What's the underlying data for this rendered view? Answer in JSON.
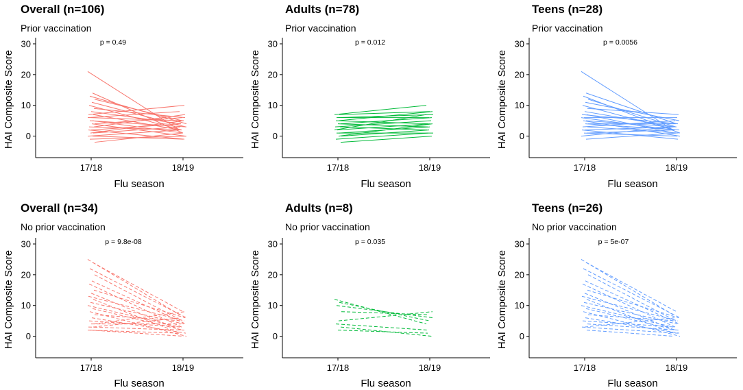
{
  "chart_data": [
    {
      "type": "line",
      "title": "Overall (n=106)",
      "subtitle": "Prior vaccination",
      "p_label": "p = 0.49",
      "xlabel": "Flu season",
      "ylabel": "HAI Composite Score",
      "categories": [
        "17/18",
        "18/19"
      ],
      "yticks": [
        0,
        10,
        20,
        30
      ],
      "ylim": [
        -7,
        32
      ],
      "color": "#F8766D",
      "dashed": false,
      "pairs": [
        [
          21,
          2
        ],
        [
          14,
          1
        ],
        [
          13,
          4
        ],
        [
          12,
          5
        ],
        [
          11,
          3
        ],
        [
          10,
          2
        ],
        [
          9,
          6
        ],
        [
          8,
          4
        ],
        [
          7,
          10
        ],
        [
          7,
          2
        ],
        [
          6,
          5
        ],
        [
          6,
          8
        ],
        [
          5,
          1
        ],
        [
          5,
          3
        ],
        [
          4,
          6
        ],
        [
          4,
          0
        ],
        [
          3,
          2
        ],
        [
          3,
          7
        ],
        [
          2,
          4
        ],
        [
          2,
          -1
        ],
        [
          1,
          3
        ],
        [
          1,
          5
        ],
        [
          0,
          2
        ],
        [
          0,
          -1
        ],
        [
          -1,
          0
        ],
        [
          -2,
          1
        ]
      ]
    },
    {
      "type": "line",
      "title": "Adults (n=78)",
      "subtitle": "Prior vaccination",
      "p_label": "p = 0.012",
      "xlabel": "Flu season",
      "ylabel": "HAI Composite Score",
      "categories": [
        "17/18",
        "18/19"
      ],
      "yticks": [
        0,
        10,
        20,
        30
      ],
      "ylim": [
        -7,
        32
      ],
      "color": "#00BA38",
      "dashed": false,
      "pairs": [
        [
          7,
          10
        ],
        [
          7,
          8
        ],
        [
          6,
          7
        ],
        [
          6,
          6
        ],
        [
          5,
          8
        ],
        [
          5,
          4
        ],
        [
          4,
          6
        ],
        [
          4,
          3
        ],
        [
          3,
          5
        ],
        [
          3,
          2
        ],
        [
          2,
          4
        ],
        [
          2,
          7
        ],
        [
          1,
          3
        ],
        [
          1,
          1
        ],
        [
          0,
          2
        ],
        [
          0,
          4
        ],
        [
          -1,
          1
        ],
        [
          -2,
          0
        ]
      ]
    },
    {
      "type": "line",
      "title": "Teens (n=28)",
      "subtitle": "Prior vaccination",
      "p_label": "p = 0.0056",
      "xlabel": "Flu season",
      "ylabel": "HAI Composite Score",
      "categories": [
        "17/18",
        "18/19"
      ],
      "yticks": [
        0,
        10,
        20,
        30
      ],
      "ylim": [
        -7,
        32
      ],
      "color": "#619CFF",
      "dashed": false,
      "pairs": [
        [
          21,
          2
        ],
        [
          14,
          4
        ],
        [
          13,
          1
        ],
        [
          12,
          3
        ],
        [
          11,
          5
        ],
        [
          10,
          2
        ],
        [
          9,
          7
        ],
        [
          8,
          3
        ],
        [
          7,
          4
        ],
        [
          7,
          1
        ],
        [
          6,
          6
        ],
        [
          6,
          2
        ],
        [
          5,
          3
        ],
        [
          5,
          0
        ],
        [
          4,
          4
        ],
        [
          4,
          2
        ],
        [
          3,
          5
        ],
        [
          3,
          1
        ],
        [
          2,
          3
        ],
        [
          2,
          -1
        ],
        [
          1,
          2
        ],
        [
          1,
          0
        ],
        [
          0,
          3
        ],
        [
          -1,
          1
        ]
      ]
    },
    {
      "type": "line",
      "title": "Overall (n=34)",
      "subtitle": "No prior vaccination",
      "p_label": "p = 9.8e-08",
      "xlabel": "Flu season",
      "ylabel": "HAI Composite Score",
      "categories": [
        "17/18",
        "18/19"
      ],
      "yticks": [
        0,
        10,
        20,
        30
      ],
      "ylim": [
        -7,
        32
      ],
      "color": "#F8766D",
      "dashed": true,
      "pairs": [
        [
          25,
          7
        ],
        [
          24,
          8
        ],
        [
          22,
          6
        ],
        [
          20,
          5
        ],
        [
          18,
          4
        ],
        [
          17,
          3
        ],
        [
          15,
          6
        ],
        [
          14,
          2
        ],
        [
          13,
          5
        ],
        [
          12,
          1
        ],
        [
          11,
          4
        ],
        [
          10,
          3
        ],
        [
          9,
          2
        ],
        [
          8,
          0
        ],
        [
          7,
          5
        ],
        [
          6,
          1
        ],
        [
          5,
          3
        ],
        [
          4,
          8
        ],
        [
          4,
          4
        ],
        [
          3,
          2
        ],
        [
          3,
          6
        ],
        [
          2,
          0
        ],
        [
          2,
          1
        ]
      ]
    },
    {
      "type": "line",
      "title": "Adults (n=8)",
      "subtitle": "No prior vaccination",
      "p_label": "p = 0.035",
      "xlabel": "Flu season",
      "ylabel": "HAI Composite Score",
      "categories": [
        "17/18",
        "18/19"
      ],
      "yticks": [
        0,
        10,
        20,
        30
      ],
      "ylim": [
        -7,
        32
      ],
      "color": "#00BA38",
      "dashed": true,
      "pairs": [
        [
          12,
          4
        ],
        [
          11,
          5
        ],
        [
          10,
          6
        ],
        [
          8,
          7
        ],
        [
          5,
          8
        ],
        [
          4,
          2
        ],
        [
          3,
          0
        ],
        [
          2,
          1
        ]
      ]
    },
    {
      "type": "line",
      "title": "Teens (n=26)",
      "subtitle": "No prior vaccination",
      "p_label": "p = 5e-07",
      "xlabel": "Flu season",
      "ylabel": "HAI Composite Score",
      "categories": [
        "17/18",
        "18/19"
      ],
      "yticks": [
        0,
        10,
        20,
        30
      ],
      "ylim": [
        -7,
        32
      ],
      "color": "#619CFF",
      "dashed": true,
      "pairs": [
        [
          25,
          7
        ],
        [
          24,
          8
        ],
        [
          22,
          6
        ],
        [
          20,
          5
        ],
        [
          18,
          4
        ],
        [
          17,
          3
        ],
        [
          15,
          6
        ],
        [
          14,
          2
        ],
        [
          13,
          5
        ],
        [
          12,
          1
        ],
        [
          11,
          4
        ],
        [
          10,
          3
        ],
        [
          9,
          2
        ],
        [
          8,
          0
        ],
        [
          7,
          5
        ],
        [
          6,
          1
        ],
        [
          5,
          3
        ],
        [
          4,
          2
        ],
        [
          3,
          6
        ],
        [
          3,
          1
        ],
        [
          2,
          0
        ]
      ]
    }
  ]
}
